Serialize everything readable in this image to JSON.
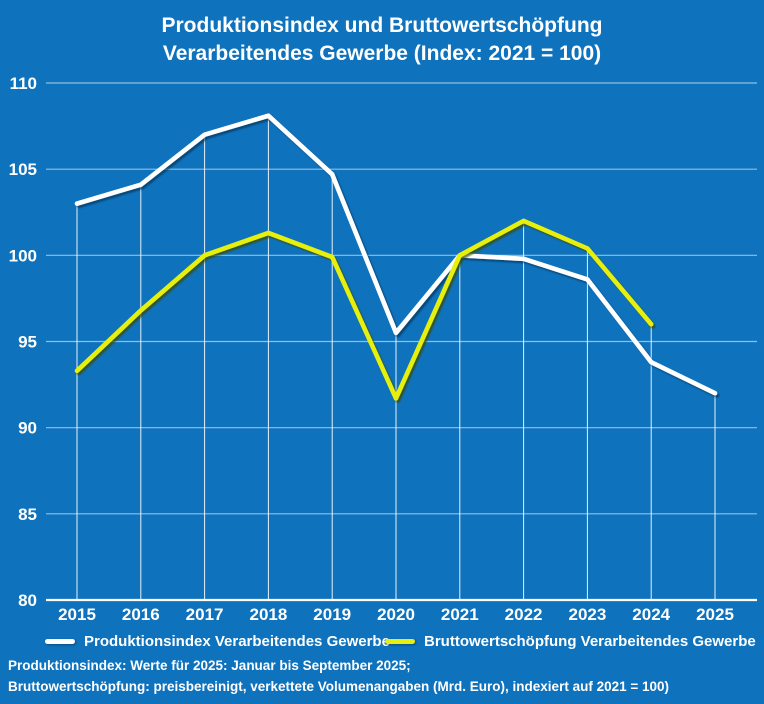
{
  "title": {
    "line1": "Produktionsindex und Bruttowertschöpfung",
    "line2": "Verarbeitendes Gewerbe (Index: 2021 = 100)"
  },
  "colors": {
    "background": "#0e72bd",
    "text": "#ffffff",
    "gridline": "rgba(255,255,255,0.55)",
    "axis_baseline": "#ffffff",
    "drop_line": "rgba(255,255,255,0.9)",
    "series1": "#ffffff",
    "series1_shadow": "#062c4f",
    "series2": "#e7ef0e",
    "series2_shadow": "#3c4a00"
  },
  "chart_data": {
    "type": "line",
    "title": "Produktionsindex und Bruttowertschöpfung Verarbeitendes Gewerbe (Index: 2021 = 100)",
    "x": [
      "2015",
      "2016",
      "2017",
      "2018",
      "2019",
      "2020",
      "2021",
      "2022",
      "2023",
      "2024",
      "2025"
    ],
    "series": [
      {
        "name": "Produktionsindex Verarbeitendes Gewerbe",
        "color": "#ffffff",
        "values": [
          103,
          104.1,
          107,
          108.1,
          104.7,
          95.5,
          100,
          99.8,
          98.6,
          93.8,
          92
        ]
      },
      {
        "name": "Bruttowertschöpfung Verarbeitendes Gewerbe",
        "color": "#e7ef0e",
        "values": [
          93.3,
          96.8,
          100,
          101.3,
          99.9,
          91.7,
          100,
          102,
          100.4,
          96,
          null
        ]
      }
    ],
    "ylim": [
      80,
      110
    ],
    "yticks": [
      110,
      105,
      100,
      95,
      90,
      85,
      80
    ],
    "xlabel": "",
    "ylabel": "",
    "grid": true,
    "drop_lines": true,
    "legend_position": "bottom"
  },
  "legend": {
    "items": [
      {
        "label": "Produktionsindex Verarbeitendes Gewerbe",
        "color": "#ffffff"
      },
      {
        "label": "Bruttowertschöpfung Verarbeitendes Gewerbe",
        "color": "#e7ef0e"
      }
    ]
  },
  "footnotes": {
    "line1": "Produktionsindex: Werte für 2025: Januar bis September 2025;",
    "line2": "Bruttowertschöpfung: preisbereinigt, verkettete Volumenangaben (Mrd. Euro), indexiert auf 2021 = 100)"
  }
}
